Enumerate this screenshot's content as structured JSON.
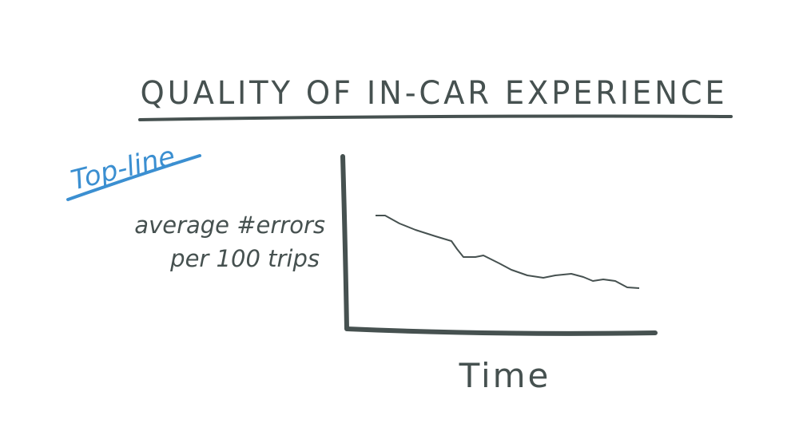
{
  "title": "QUALITY OF IN-CAR EXPERIENCE",
  "tag": "Top-line",
  "y_axis_label": [
    "average #errors",
    "per 100 trips"
  ],
  "x_axis_label": "Time"
}
